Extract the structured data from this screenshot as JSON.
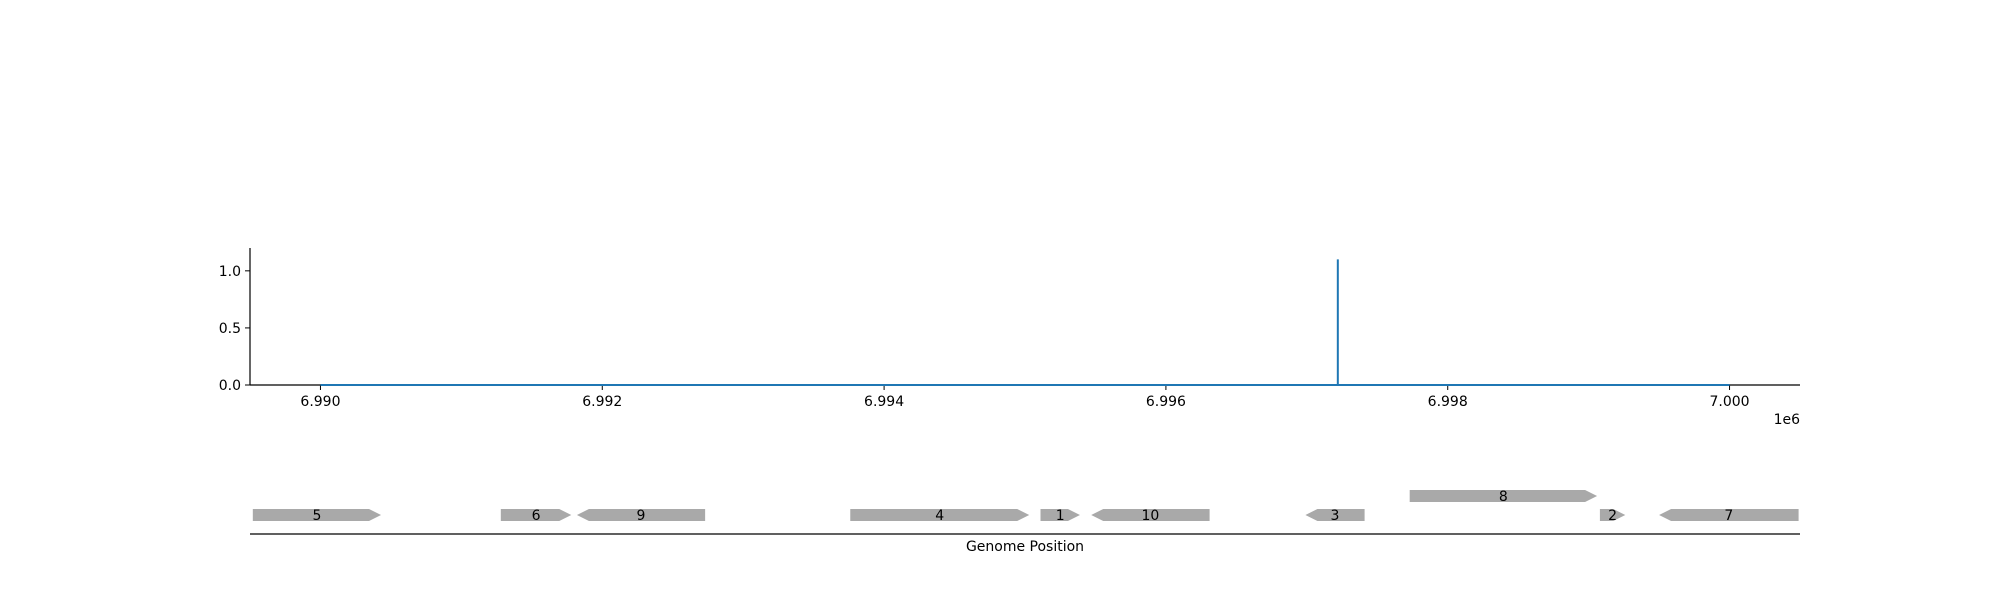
{
  "chart_data": [
    {
      "type": "line",
      "title": "",
      "xlabel": "",
      "ylabel": "",
      "x_offset_text": "1e6",
      "xlim": [
        6.9895,
        7.0005
      ],
      "ylim": [
        0,
        1.2
      ],
      "x_ticks": [
        6.99,
        6.992,
        6.994,
        6.996,
        6.998,
        7.0
      ],
      "x_tick_labels": [
        "6.990",
        "6.992",
        "6.994",
        "6.996",
        "6.998",
        "7.000"
      ],
      "y_ticks": [
        0.0,
        0.5,
        1.0
      ],
      "y_tick_labels": [
        "0.0",
        "0.5",
        "1.0"
      ],
      "grid": false,
      "series": [
        {
          "x": [
            6.99,
            6.99722,
            6.99722,
            6.99722,
            7.0
          ],
          "y": [
            0,
            0,
            1.1,
            0,
            0
          ]
        }
      ],
      "line_color": "#1f77b4"
    },
    {
      "type": "gene-track",
      "xlabel": "Genome Position",
      "xlim": [
        6.9895,
        7.0005
      ],
      "feature_color": "#a9a9a9",
      "genes": [
        {
          "label": "5",
          "start": 6.98952,
          "end": 6.99043,
          "strand": "+",
          "row": 0
        },
        {
          "label": "6",
          "start": 6.99128,
          "end": 6.99178,
          "strand": "+",
          "row": 0
        },
        {
          "label": "9",
          "start": 6.99182,
          "end": 6.99273,
          "strand": "-",
          "row": 0
        },
        {
          "label": "4",
          "start": 6.99376,
          "end": 6.99503,
          "strand": "+",
          "row": 0
        },
        {
          "label": "1",
          "start": 6.99511,
          "end": 6.99539,
          "strand": "+",
          "row": 0
        },
        {
          "label": "10",
          "start": 6.99547,
          "end": 6.99631,
          "strand": "-",
          "row": 0
        },
        {
          "label": "3",
          "start": 6.99699,
          "end": 6.99741,
          "strand": "-",
          "row": 0
        },
        {
          "label": "8",
          "start": 6.99773,
          "end": 6.99906,
          "strand": "+",
          "row": 1
        },
        {
          "label": "2",
          "start": 6.99908,
          "end": 6.99926,
          "strand": "+",
          "row": 0
        },
        {
          "label": "7",
          "start": 6.9995,
          "end": 7.00049,
          "strand": "-",
          "row": 0
        }
      ]
    }
  ]
}
